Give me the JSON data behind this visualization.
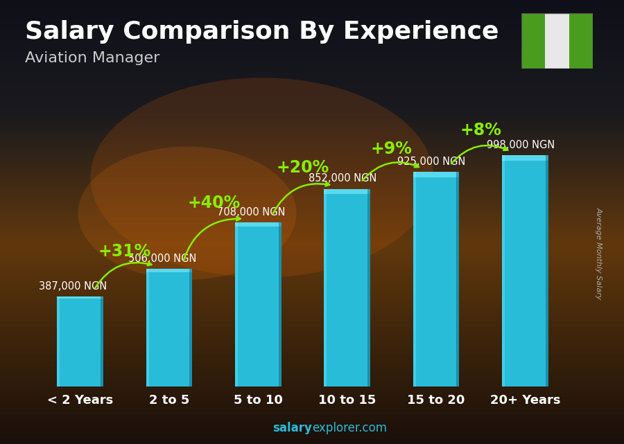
{
  "title": "Salary Comparison By Experience",
  "subtitle": "Aviation Manager",
  "ylabel": "Average Monthly Salary",
  "watermark_bold": "salary",
  "watermark_normal": "explorer.com",
  "categories": [
    "< 2 Years",
    "2 to 5",
    "5 to 10",
    "10 to 15",
    "15 to 20",
    "20+ Years"
  ],
  "values": [
    387000,
    506000,
    708000,
    852000,
    925000,
    998000
  ],
  "value_labels": [
    "387,000 NGN",
    "506,000 NGN",
    "708,000 NGN",
    "852,000 NGN",
    "925,000 NGN",
    "998,000 NGN"
  ],
  "pct_labels": [
    "+31%",
    "+40%",
    "+20%",
    "+9%",
    "+8%"
  ],
  "bar_color": "#29bcd8",
  "title_color": "#ffffff",
  "subtitle_color": "#cccccc",
  "value_label_color": "#ffffff",
  "pct_color": "#88ee00",
  "ylabel_color": "#aaaaaa",
  "cat_label_color": "#ffffff",
  "watermark_color": "#29bcd8",
  "ylim_max": 1150000,
  "title_fontsize": 26,
  "subtitle_fontsize": 16,
  "value_fontsize": 10.5,
  "pct_fontsize": 17,
  "cat_fontsize": 13,
  "nigeria_flag_green": "#4a9c1f",
  "nigeria_flag_white": "#e8e8e8",
  "flag_bg": "#1a2a1a"
}
